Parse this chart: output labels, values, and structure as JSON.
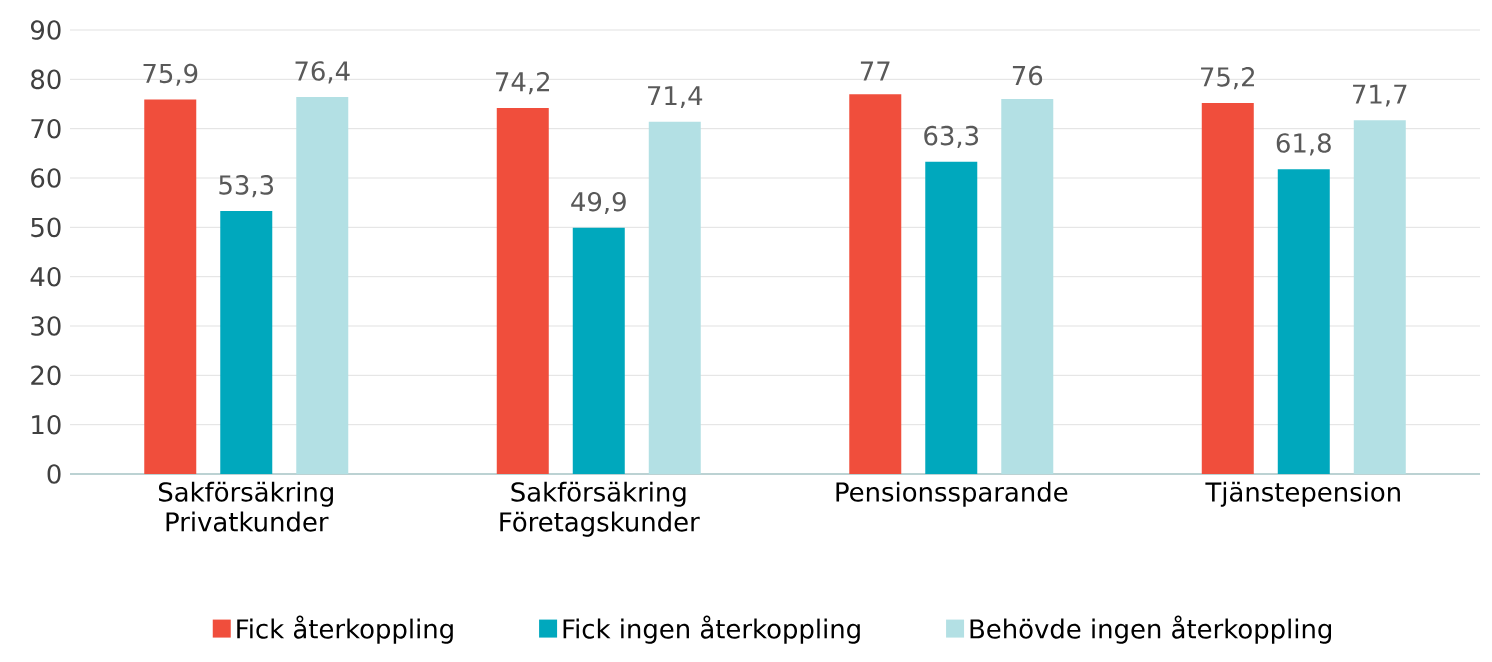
{
  "chart_data": {
    "type": "bar",
    "categories": [
      "Sakförsäkring Privatkunder",
      "Sakförsäkring Företagskunder",
      "Pensionssparande",
      "Tjänstepension"
    ],
    "series": [
      {
        "name": "Fick återkoppling",
        "color": "#f04e3c",
        "values": [
          75.9,
          74.2,
          77,
          75.2
        ],
        "value_labels": [
          "75,9",
          "74,2",
          "77",
          "75,2"
        ]
      },
      {
        "name": "Fick ingen återkoppling",
        "color": "#00a8bd",
        "values": [
          53.3,
          49.9,
          63.3,
          61.8
        ],
        "value_labels": [
          "53,3",
          "49,9",
          "63,3",
          "61,8"
        ]
      },
      {
        "name": "Behövde ingen återkoppling",
        "color": "#b3e0e4",
        "values": [
          76.4,
          71.4,
          76,
          71.7
        ],
        "value_labels": [
          "76,4",
          "71,4",
          "76",
          "71,7"
        ]
      }
    ],
    "ylim": [
      0,
      90
    ],
    "yticks": [
      0,
      10,
      20,
      30,
      40,
      50,
      60,
      70,
      80,
      90
    ],
    "grid": "y",
    "legend": "bottom"
  }
}
